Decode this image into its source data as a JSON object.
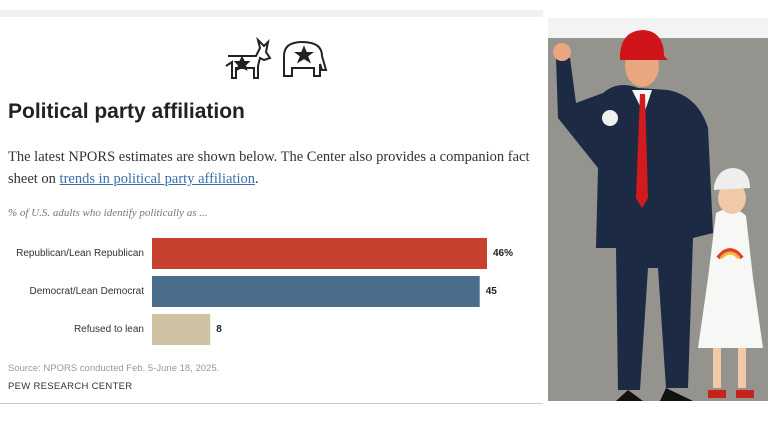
{
  "header": {
    "title": "Political party affiliation",
    "paragraph": {
      "before": "The latest NPORS estimates are shown below. The Center also provides a companion fact sheet on ",
      "link": "trends in political party affiliation",
      "after": "."
    }
  },
  "chart_data": {
    "type": "bar",
    "orientation": "horizontal",
    "subtitle": "% of U.S. adults who identify politically as ...",
    "categories": [
      "Republican/Lean Republican",
      "Democrat/Lean Democrat",
      "Refused to lean"
    ],
    "values": [
      46,
      45,
      8
    ],
    "value_labels": [
      "46%",
      "45",
      "8"
    ],
    "colors": [
      "#c8412f",
      "#4a6d8c",
      "#cdc3a3"
    ],
    "source": "Source: NPORS conducted Feb. 5-June 18, 2025.",
    "credit": "PEW RESEARCH CENTER"
  }
}
